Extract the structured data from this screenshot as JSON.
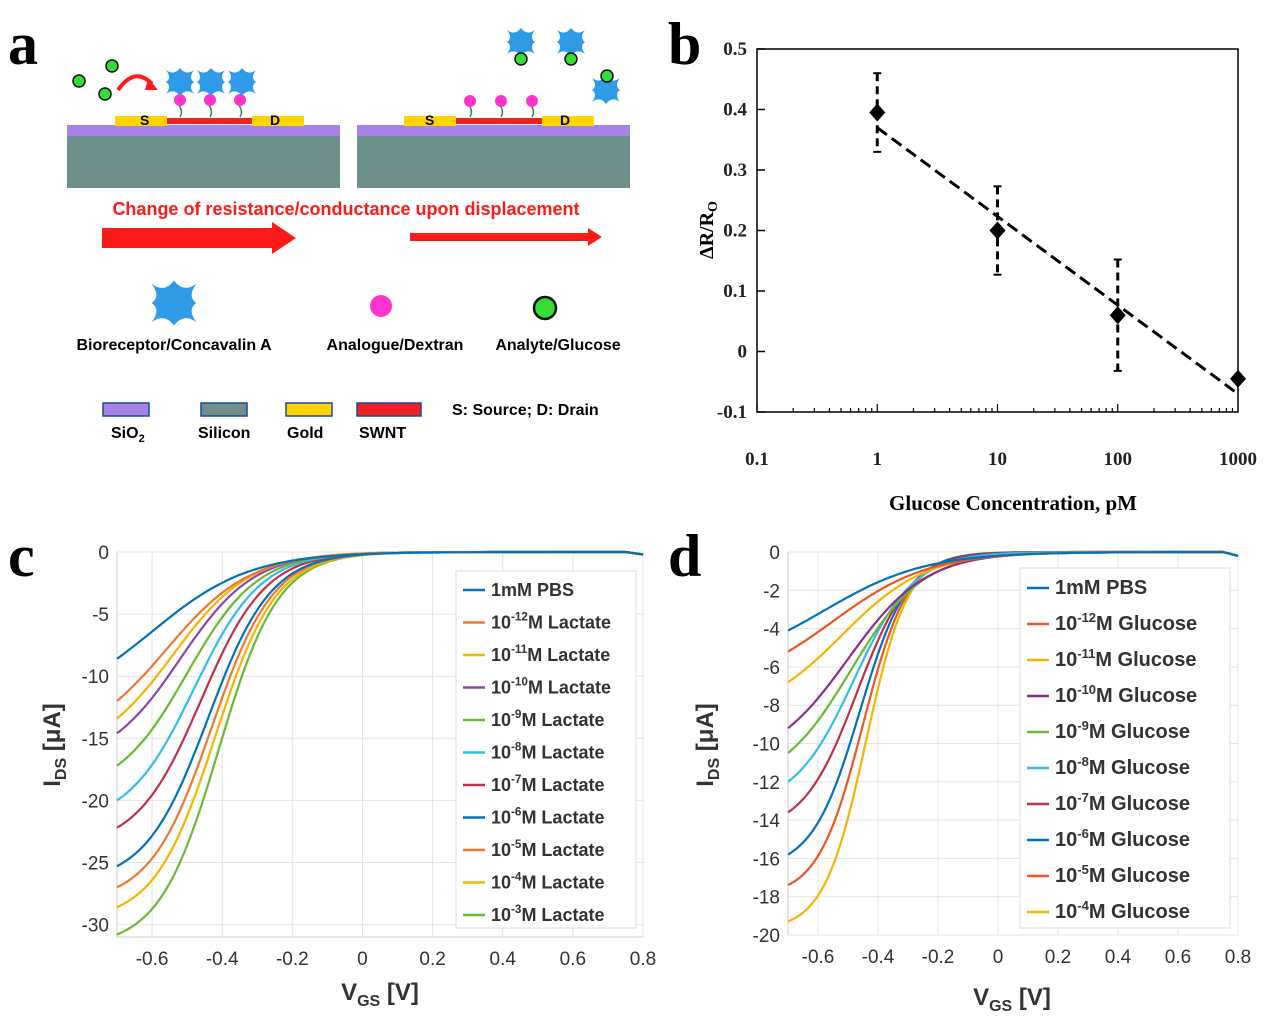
{
  "panel_labels": [
    "a",
    "b",
    "c",
    "d"
  ],
  "schematic": {
    "source_label": "S",
    "drain_label": "D",
    "banner": "Change of resistance/conductance upon displacement",
    "legend_items": [
      {
        "label": "Bioreceptor/Concavalin A",
        "icon": "bioreceptor-icon"
      },
      {
        "label": "Analogue/Dextran",
        "icon": "analogue-icon"
      },
      {
        "label": "Analyte/Glucose",
        "icon": "analyte-icon"
      }
    ],
    "material_legend": [
      "SiO2",
      "Silicon",
      "Gold",
      "SWNT"
    ],
    "sd_note": "S: Source; D: Drain",
    "colors": {
      "sio2": "#a783e8",
      "silicon": "#6f8f8a",
      "gold": "#ffd400",
      "swnt": "#ee2222",
      "bioreceptor": "#2f9be6",
      "analogue": "#ff33cc",
      "analyte": "#33dd33",
      "arrow": "#ff1a1a"
    }
  },
  "chart_data": [
    {
      "type": "scatter",
      "panel": "b",
      "title": "",
      "xlabel": "Glucose Concentration, pM",
      "ylabel": "ΔR/R",
      "ylabel_sub": "O",
      "xscale": "log",
      "xlim": [
        0.1,
        1000
      ],
      "ylim": [
        -0.1,
        0.5
      ],
      "xticks": [
        "0.1",
        "1",
        "10",
        "100",
        "1000"
      ],
      "yticks": [
        "-0.1",
        "0",
        "0.1",
        "0.2",
        "0.3",
        "0.4",
        "0.5"
      ],
      "points": [
        {
          "x": 1,
          "y": 0.395,
          "err": 0.065
        },
        {
          "x": 10,
          "y": 0.2,
          "err": 0.073
        },
        {
          "x": 100,
          "y": 0.06,
          "err": 0.092
        },
        {
          "x": 1000,
          "y": -0.045,
          "err": 0
        }
      ],
      "fit": [
        [
          1,
          0.37
        ],
        [
          1000,
          -0.07
        ]
      ]
    },
    {
      "type": "line",
      "panel": "c",
      "xlabel": "V",
      "xlabel_sub": "GS",
      "xlabel_unit": " [V]",
      "ylabel": "I",
      "ylabel_sub": "DS",
      "ylabel_unit": " [μA]",
      "xlim": [
        -0.7,
        0.8
      ],
      "ylim": [
        -31,
        0
      ],
      "xticks": [
        "-0.6",
        "-0.4",
        "-0.2",
        "0",
        "0.2",
        "0.4",
        "0.6",
        "0.8"
      ],
      "yticks": [
        "0",
        "-5",
        "-10",
        "-15",
        "-20",
        "-25",
        "-30"
      ],
      "series": [
        {
          "name": "1mM PBS",
          "base": "",
          "exp": "",
          "unit": "",
          "color": "#0072bd",
          "i0": -8.6,
          "x50": -0.6,
          "k": 0.14
        },
        {
          "name": "Lactate",
          "base": "10",
          "exp": "-12",
          "unit": "M ",
          "color": "#ee7733",
          "i0": -12,
          "x50": -0.56,
          "k": 0.12
        },
        {
          "name": "Lactate",
          "base": "10",
          "exp": "-11",
          "unit": "M ",
          "color": "#f4b400",
          "i0": -13.4,
          "x50": -0.54,
          "k": 0.11
        },
        {
          "name": "Lactate",
          "base": "10",
          "exp": "-10",
          "unit": "M ",
          "color": "#8e44ad",
          "i0": -14.6,
          "x50": -0.52,
          "k": 0.105
        },
        {
          "name": "Lactate",
          "base": "10",
          "exp": "-9",
          "unit": "M ",
          "color": "#66bb33",
          "i0": -17.2,
          "x50": -0.5,
          "k": 0.1
        },
        {
          "name": "Lactate",
          "base": "10",
          "exp": "-8",
          "unit": "M ",
          "color": "#33bbee",
          "i0": -20,
          "x50": -0.48,
          "k": 0.095
        },
        {
          "name": "Lactate",
          "base": "10",
          "exp": "-7",
          "unit": "M ",
          "color": "#c0304a",
          "i0": -22.2,
          "x50": -0.46,
          "k": 0.092
        },
        {
          "name": "Lactate",
          "base": "10",
          "exp": "-6",
          "unit": "M ",
          "color": "#0072bd",
          "i0": -25.3,
          "x50": -0.44,
          "k": 0.09
        },
        {
          "name": "Lactate",
          "base": "10",
          "exp": "-5",
          "unit": "M ",
          "color": "#ee7733",
          "i0": -27,
          "x50": -0.43,
          "k": 0.088
        },
        {
          "name": "Lactate",
          "base": "10",
          "exp": "-4",
          "unit": "M ",
          "color": "#f4b400",
          "i0": -28.6,
          "x50": -0.42,
          "k": 0.087
        },
        {
          "name": "Lactate",
          "base": "10",
          "exp": "-3",
          "unit": "M ",
          "color": "#66bb33",
          "i0": -30.8,
          "x50": -0.41,
          "k": 0.085
        }
      ]
    },
    {
      "type": "line",
      "panel": "d",
      "xlabel": "V",
      "xlabel_sub": "GS",
      "xlabel_unit": " [V]",
      "ylabel": "I",
      "ylabel_sub": "DS",
      "ylabel_unit": " [μA]",
      "xlim": [
        -0.7,
        0.8
      ],
      "ylim": [
        -20,
        0
      ],
      "xticks": [
        "-0.6",
        "-0.4",
        "-0.2",
        "0",
        "0.2",
        "0.4",
        "0.6",
        "0.8"
      ],
      "yticks": [
        "0",
        "-2",
        "-4",
        "-6",
        "-8",
        "-10",
        "-12",
        "-14",
        "-16",
        "-18",
        "-20"
      ],
      "series": [
        {
          "name": "1mM PBS",
          "base": "",
          "exp": "",
          "unit": "",
          "color": "#0072bd",
          "i0": -4.1,
          "x50": -0.58,
          "k": 0.17
        },
        {
          "name": "Glucose",
          "base": "10",
          "exp": "-12",
          "unit": "M ",
          "color": "#ee5522",
          "i0": -5.2,
          "x50": -0.55,
          "k": 0.16
        },
        {
          "name": "Glucose",
          "base": "10",
          "exp": "-11",
          "unit": "M ",
          "color": "#f4b400",
          "i0": -6.8,
          "x50": -0.52,
          "k": 0.14
        },
        {
          "name": "Glucose",
          "base": "10",
          "exp": "-10",
          "unit": "M ",
          "color": "#8e2c8e",
          "i0": -9.2,
          "x50": -0.5,
          "k": 0.13
        },
        {
          "name": "Glucose",
          "base": "10",
          "exp": "-9",
          "unit": "M ",
          "color": "#66bb33",
          "i0": -10.5,
          "x50": -0.49,
          "k": 0.12
        },
        {
          "name": "Glucose",
          "base": "10",
          "exp": "-8",
          "unit": "M ",
          "color": "#33bbee",
          "i0": -12,
          "x50": -0.48,
          "k": 0.1
        },
        {
          "name": "Glucose",
          "base": "10",
          "exp": "-7",
          "unit": "M ",
          "color": "#c0304a",
          "i0": -13.6,
          "x50": -0.47,
          "k": 0.09
        },
        {
          "name": "Glucose",
          "base": "10",
          "exp": "-6",
          "unit": "M ",
          "color": "#0072bd",
          "i0": -15.8,
          "x50": -0.46,
          "k": 0.08
        },
        {
          "name": "Glucose",
          "base": "10",
          "exp": "-5",
          "unit": "M ",
          "color": "#ee5522",
          "i0": -17.4,
          "x50": -0.45,
          "k": 0.075
        },
        {
          "name": "Glucose",
          "base": "10",
          "exp": "-4",
          "unit": "M ",
          "color": "#f4b400",
          "i0": -19.3,
          "x50": -0.44,
          "k": 0.07
        }
      ]
    }
  ]
}
